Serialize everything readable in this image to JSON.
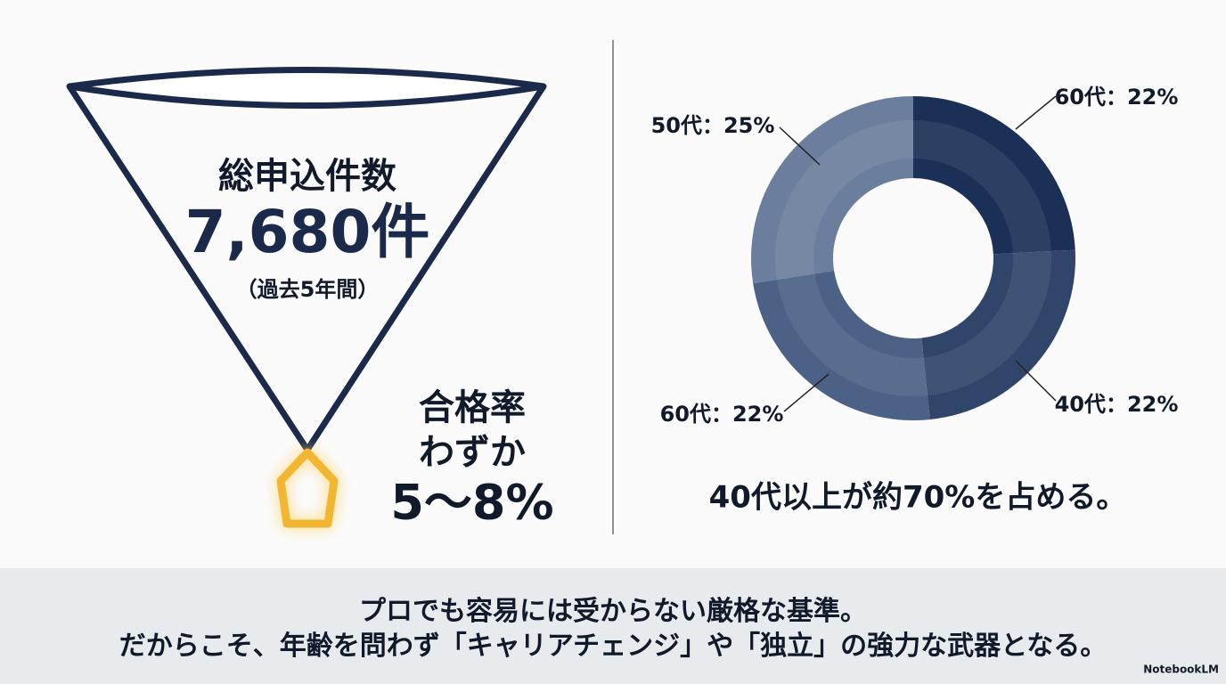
{
  "funnel": {
    "title": "総申込件数",
    "value": "7,680件",
    "note": "（過去5年間）"
  },
  "pass_rate": {
    "line1": "合格率",
    "line2": "わずか",
    "value": "5〜8%"
  },
  "chart_data": {
    "type": "pie",
    "values": [
      22,
      22,
      22,
      25
    ],
    "value_labels": [
      "60代：22%",
      "40代：22%",
      "60代：22%",
      "50代：25%"
    ],
    "colors": [
      "#1b3056",
      "#2f4569",
      "#4b6186",
      "#6b7e9d"
    ],
    "caption": "40代以上が約70%を占める。"
  },
  "banner": {
    "line1": "プロでも容易には受からない厳格な基準。",
    "line2": "だからこそ、年齢を問わず「キャリアチェンジ」や「独立」の強力な武器となる。"
  },
  "watermark": "NotebookLM"
}
